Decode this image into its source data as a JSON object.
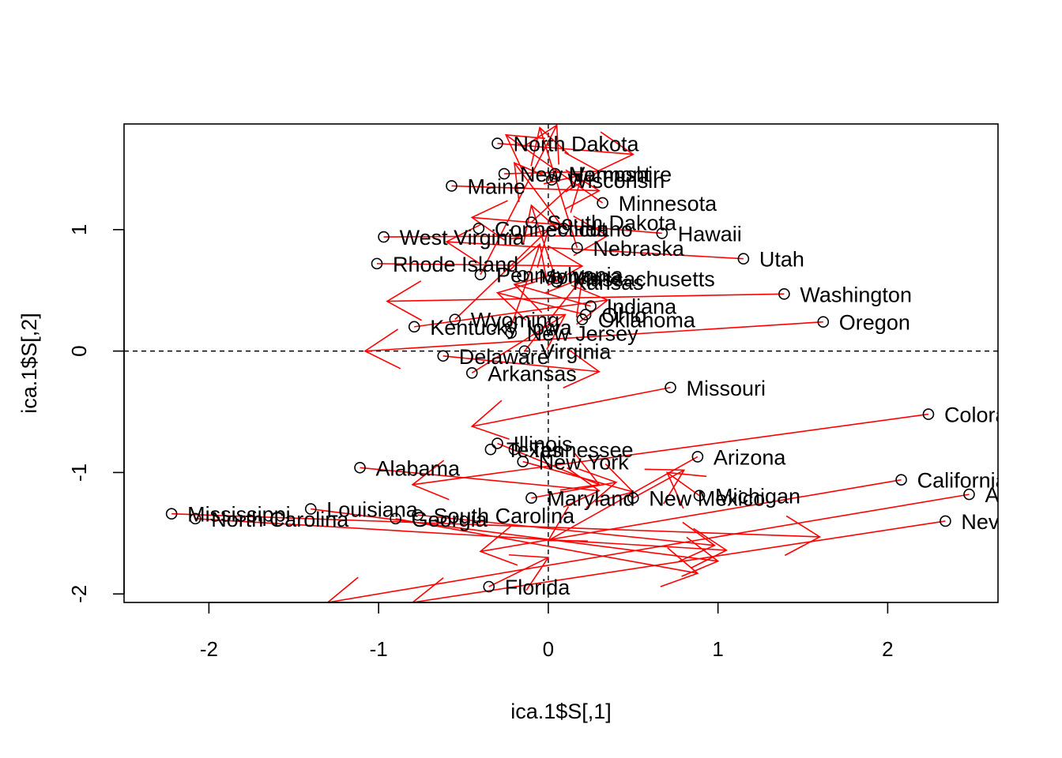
{
  "chart_data": {
    "type": "scatter",
    "title": "",
    "xlabel": "ica.1$S[,1]",
    "ylabel": "ica.1$S[,2]",
    "xlim": [
      -2.5,
      2.65
    ],
    "ylim": [
      -2.07,
      1.87
    ],
    "x_ticks": [
      -2,
      -1,
      0,
      1,
      2
    ],
    "y_ticks": [
      -2,
      -1,
      0,
      1
    ],
    "reference_lines": {
      "x": 0,
      "y": 0,
      "style": "dashed"
    },
    "point_color": "#000000",
    "arrow_color": "#ff0000",
    "points": [
      {
        "label": "North Dakota",
        "x": -0.3,
        "y": 1.71
      },
      {
        "label": "New Hampshire",
        "x": -0.26,
        "y": 1.46
      },
      {
        "label": "Vermont",
        "x": 0.04,
        "y": 1.46
      },
      {
        "label": "Wisconsin",
        "x": 0.02,
        "y": 1.41
      },
      {
        "label": "Maine",
        "x": -0.57,
        "y": 1.36
      },
      {
        "label": "Minnesota",
        "x": 0.32,
        "y": 1.22
      },
      {
        "label": "South Dakota",
        "x": -0.1,
        "y": 1.06
      },
      {
        "label": "Connecticut",
        "x": -0.41,
        "y": 1.01
      },
      {
        "label": "Idaho",
        "x": 0.09,
        "y": 1.01
      },
      {
        "label": "Hawaii",
        "x": 0.67,
        "y": 0.97
      },
      {
        "label": "West Virginia",
        "x": -0.97,
        "y": 0.94
      },
      {
        "label": "Nebraska",
        "x": 0.17,
        "y": 0.85
      },
      {
        "label": "Utah",
        "x": 1.15,
        "y": 0.76
      },
      {
        "label": "Rhode Island",
        "x": -1.01,
        "y": 0.72
      },
      {
        "label": "Pennsylvania",
        "x": -0.4,
        "y": 0.63
      },
      {
        "label": "Montana",
        "x": -0.15,
        "y": 0.62
      },
      {
        "label": "Massachusetts",
        "x": 0.05,
        "y": 0.6
      },
      {
        "label": "Kansas",
        "x": 0.05,
        "y": 0.57
      },
      {
        "label": "Washington",
        "x": 1.39,
        "y": 0.47
      },
      {
        "label": "Indiana",
        "x": 0.25,
        "y": 0.37
      },
      {
        "label": "Ohio",
        "x": 0.22,
        "y": 0.3
      },
      {
        "label": "Oklahoma",
        "x": 0.2,
        "y": 0.26
      },
      {
        "label": "Wyoming",
        "x": -0.55,
        "y": 0.26
      },
      {
        "label": "Oregon",
        "x": 1.62,
        "y": 0.24
      },
      {
        "label": "Kentucky",
        "x": -0.79,
        "y": 0.2
      },
      {
        "label": "Iowa",
        "x": -0.22,
        "y": 0.2
      },
      {
        "label": "New Jersey",
        "x": -0.22,
        "y": 0.15
      },
      {
        "label": "Virginia",
        "x": -0.14,
        "y": 0.0
      },
      {
        "label": "Delaware",
        "x": -0.62,
        "y": -0.04
      },
      {
        "label": "Arkansas",
        "x": -0.45,
        "y": -0.18
      },
      {
        "label": "Missouri",
        "x": 0.72,
        "y": -0.3
      },
      {
        "label": "Colorado",
        "x": 2.24,
        "y": -0.52
      },
      {
        "label": "Illinois",
        "x": -0.3,
        "y": -0.76
      },
      {
        "label": "Texas",
        "x": -0.34,
        "y": -0.81
      },
      {
        "label": "Tennessee",
        "x": -0.2,
        "y": -0.81
      },
      {
        "label": "New York",
        "x": -0.15,
        "y": -0.91
      },
      {
        "label": "Arizona",
        "x": 0.88,
        "y": -0.87
      },
      {
        "label": "Alabama",
        "x": -1.11,
        "y": -0.96
      },
      {
        "label": "California",
        "x": 2.08,
        "y": -1.06
      },
      {
        "label": "Maryland",
        "x": -0.1,
        "y": -1.21
      },
      {
        "label": "New Mexico",
        "x": 0.5,
        "y": -1.21
      },
      {
        "label": "Michigan",
        "x": 0.89,
        "y": -1.19
      },
      {
        "label": "Alaska",
        "x": 2.48,
        "y": -1.18
      },
      {
        "label": "Mississippi",
        "x": -2.22,
        "y": -1.34
      },
      {
        "label": "Louisiana",
        "x": -1.4,
        "y": -1.3
      },
      {
        "label": "South Carolina",
        "x": -0.77,
        "y": -1.35
      },
      {
        "label": "North Carolina",
        "x": -2.08,
        "y": -1.38
      },
      {
        "label": "Georgia",
        "x": -0.9,
        "y": -1.38
      },
      {
        "label": "Nevada",
        "x": 2.34,
        "y": -1.4
      },
      {
        "label": "Florida",
        "x": -0.35,
        "y": -1.94
      }
    ],
    "arrows": [
      {
        "from": [
          -2.22,
          -1.34
        ],
        "to": [
          1.6,
          -1.53
        ]
      },
      {
        "from": [
          -2.08,
          -1.38
        ],
        "to": [
          1.05,
          -1.64
        ]
      },
      {
        "from": [
          -1.4,
          -1.3
        ],
        "to": [
          1.0,
          -1.73
        ]
      },
      {
        "from": [
          -1.11,
          -0.96
        ],
        "to": [
          0.3,
          -1.15
        ]
      },
      {
        "from": [
          -0.9,
          -1.38
        ],
        "to": [
          0.88,
          -1.83
        ]
      },
      {
        "from": [
          -0.77,
          -1.35
        ],
        "to": [
          0.98,
          -1.6
        ]
      },
      {
        "from": [
          2.48,
          -1.18
        ],
        "to": [
          -1.3,
          -2.07
        ]
      },
      {
        "from": [
          2.34,
          -1.4
        ],
        "to": [
          -0.8,
          -2.07
        ]
      },
      {
        "from": [
          2.24,
          -0.52
        ],
        "to": [
          -0.8,
          -1.1
        ]
      },
      {
        "from": [
          2.08,
          -1.06
        ],
        "to": [
          -0.4,
          -1.65
        ]
      },
      {
        "from": [
          0.88,
          -0.87
        ],
        "to": [
          0.0,
          -1.56
        ]
      },
      {
        "from": [
          0.72,
          -0.3
        ],
        "to": [
          -0.45,
          -0.62
        ]
      },
      {
        "from": [
          1.62,
          0.24
        ],
        "to": [
          -1.08,
          0.0
        ]
      },
      {
        "from": [
          1.39,
          0.47
        ],
        "to": [
          -0.95,
          0.41
        ]
      },
      {
        "from": [
          1.15,
          0.76
        ],
        "to": [
          -0.6,
          0.9
        ]
      },
      {
        "from": [
          0.67,
          0.97
        ],
        "to": [
          -0.45,
          1.1
        ]
      },
      {
        "from": [
          -0.97,
          0.94
        ],
        "to": [
          0.35,
          0.95
        ]
      },
      {
        "from": [
          -1.01,
          0.72
        ],
        "to": [
          0.2,
          0.7
        ]
      },
      {
        "from": [
          -0.79,
          0.2
        ],
        "to": [
          0.35,
          0.42
        ]
      },
      {
        "from": [
          -0.62,
          -0.04
        ],
        "to": [
          0.3,
          -0.17
        ]
      },
      {
        "from": [
          -0.57,
          1.36
        ],
        "to": [
          0.3,
          1.32
        ]
      },
      {
        "from": [
          -0.3,
          1.71
        ],
        "to": [
          0.5,
          1.62
        ]
      },
      {
        "from": [
          -0.26,
          1.46
        ],
        "to": [
          0.3,
          1.48
        ]
      },
      {
        "from": [
          -0.35,
          -1.94
        ],
        "to": [
          0.0,
          -1.7
        ]
      },
      {
        "from": [
          -0.3,
          -0.76
        ],
        "to": [
          0.3,
          -1.1
        ]
      },
      {
        "from": [
          -0.15,
          -0.91
        ],
        "to": [
          0.5,
          -1.16
        ]
      },
      {
        "from": [
          -0.1,
          -1.21
        ],
        "to": [
          0.4,
          -1.08
        ]
      },
      {
        "from": [
          0.5,
          -1.21
        ],
        "to": [
          0.8,
          -0.98
        ]
      },
      {
        "from": [
          0.89,
          -1.19
        ],
        "to": [
          0.7,
          -1.0
        ]
      },
      {
        "from": [
          -0.45,
          -0.18
        ],
        "to": [
          0.1,
          0.3
        ]
      },
      {
        "from": [
          -0.14,
          0.0
        ],
        "to": [
          0.2,
          0.6
        ]
      },
      {
        "from": [
          0.25,
          0.37
        ],
        "to": [
          -0.2,
          0.55
        ]
      },
      {
        "from": [
          0.22,
          0.3
        ],
        "to": [
          -0.3,
          0.48
        ]
      },
      {
        "from": [
          0.05,
          0.57
        ],
        "to": [
          -0.1,
          1.2
        ]
      },
      {
        "from": [
          -0.1,
          1.06
        ],
        "to": [
          0.2,
          1.45
        ]
      },
      {
        "from": [
          0.09,
          1.01
        ],
        "to": [
          -0.2,
          1.55
        ]
      },
      {
        "from": [
          0.32,
          1.22
        ],
        "to": [
          -0.25,
          1.78
        ]
      },
      {
        "from": [
          0.17,
          0.85
        ],
        "to": [
          -0.05,
          1.84
        ]
      },
      {
        "from": [
          -0.4,
          0.63
        ],
        "to": [
          0.05,
          1.86
        ]
      },
      {
        "from": [
          -0.22,
          0.2
        ],
        "to": [
          -0.05,
          0.88
        ]
      },
      {
        "from": [
          -0.55,
          0.26
        ],
        "to": [
          0.0,
          1.0
        ]
      }
    ]
  }
}
